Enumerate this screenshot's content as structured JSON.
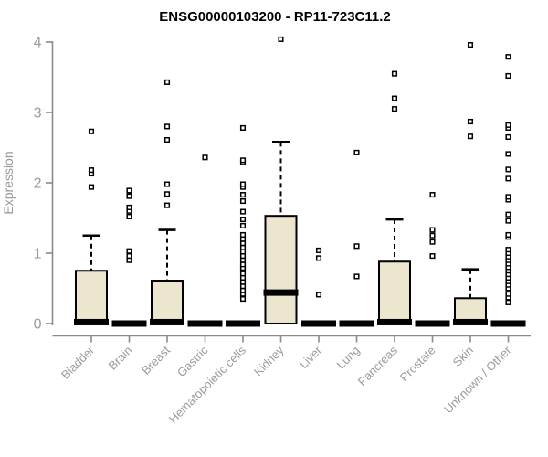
{
  "colors": {
    "box_fill": "#EDE6CE",
    "box_stroke": "#000000",
    "median": "#000000",
    "whisker": "#000000",
    "outlier_stroke": "#000000",
    "outlier_fill": "#ffffff",
    "axis": "#8a8a8a",
    "tick_label": "#9a9a9a",
    "background": "#ffffff"
  },
  "chart_data": {
    "type": "boxplot",
    "title": "ENSG00000103200 - RP11-723C11.2",
    "ylabel": "Expression",
    "xlabel": "",
    "ylim": [
      0,
      4
    ],
    "yticks": [
      0,
      1,
      2,
      3,
      4
    ],
    "grid": false,
    "legend": false,
    "categories": [
      "Bladder",
      "Brain",
      "Breast",
      "Gastric",
      "Hematopoietic cells",
      "Kidney",
      "Liver",
      "Lung",
      "Pancreas",
      "Prostate",
      "Skin",
      "Unknown / Other"
    ],
    "series": [
      {
        "name": "Bladder",
        "q1": 0,
        "median": 0.02,
        "q3": 0.75,
        "whisker_low": 0,
        "whisker_high": 1.25,
        "outliers": [
          1.94,
          2.13,
          2.18,
          2.73
        ]
      },
      {
        "name": "Brain",
        "q1": 0,
        "median": 0,
        "q3": 0,
        "whisker_low": 0,
        "whisker_high": 0,
        "outliers": [
          0.9,
          0.96,
          1.03,
          1.52,
          1.6,
          1.65,
          1.81,
          1.89
        ]
      },
      {
        "name": "Breast",
        "q1": 0,
        "median": 0.02,
        "q3": 0.61,
        "whisker_low": 0,
        "whisker_high": 1.33,
        "outliers": [
          1.68,
          1.84,
          1.98,
          2.61,
          2.8,
          3.43
        ]
      },
      {
        "name": "Gastric",
        "q1": 0,
        "median": 0,
        "q3": 0,
        "whisker_low": 0,
        "whisker_high": 0,
        "outliers": [
          2.36
        ]
      },
      {
        "name": "Hematopoietic cells",
        "q1": 0,
        "median": 0,
        "q3": 0,
        "whisker_low": 0,
        "whisker_high": 0,
        "outliers": [
          0.35,
          0.42,
          0.47,
          0.53,
          0.59,
          0.65,
          0.71,
          0.77,
          0.79,
          0.84,
          0.9,
          0.96,
          1.02,
          1.08,
          1.14,
          1.2,
          1.26,
          1.39,
          1.48,
          1.59,
          1.74,
          1.83,
          1.94,
          1.98,
          2.29,
          2.32,
          2.78
        ]
      },
      {
        "name": "Kidney",
        "q1": 0,
        "median": 0.44,
        "q3": 1.53,
        "whisker_low": 0,
        "whisker_high": 2.58,
        "outliers": [
          4.04
        ]
      },
      {
        "name": "Liver",
        "q1": 0,
        "median": 0,
        "q3": 0,
        "whisker_low": 0,
        "whisker_high": 0,
        "outliers": [
          0.41,
          0.93,
          1.04
        ]
      },
      {
        "name": "Lung",
        "q1": 0,
        "median": 0,
        "q3": 0,
        "whisker_low": 0,
        "whisker_high": 0,
        "outliers": [
          0.67,
          1.1,
          2.43
        ]
      },
      {
        "name": "Pancreas",
        "q1": 0,
        "median": 0.02,
        "q3": 0.88,
        "whisker_low": 0,
        "whisker_high": 1.48,
        "outliers": [
          3.05,
          3.2,
          3.55
        ]
      },
      {
        "name": "Prostate",
        "q1": 0,
        "median": 0,
        "q3": 0,
        "whisker_low": 0,
        "whisker_high": 0,
        "outliers": [
          0.96,
          1.16,
          1.25,
          1.33,
          1.83
        ]
      },
      {
        "name": "Skin",
        "q1": 0,
        "median": 0.02,
        "q3": 0.36,
        "whisker_low": 0,
        "whisker_high": 0.77,
        "outliers": [
          2.66,
          2.87,
          3.96
        ]
      },
      {
        "name": "Unknown / Other",
        "q1": 0,
        "median": 0,
        "q3": 0,
        "whisker_low": 0,
        "whisker_high": 0,
        "outliers": [
          0.3,
          0.37,
          0.42,
          0.5,
          0.55,
          0.6,
          0.65,
          0.7,
          0.75,
          0.8,
          0.85,
          0.9,
          0.95,
          1.0,
          1.05,
          1.23,
          1.26,
          1.46,
          1.55,
          1.76,
          1.8,
          2.06,
          2.19,
          2.41,
          2.65,
          2.78,
          2.82,
          3.52,
          3.79
        ]
      }
    ]
  }
}
